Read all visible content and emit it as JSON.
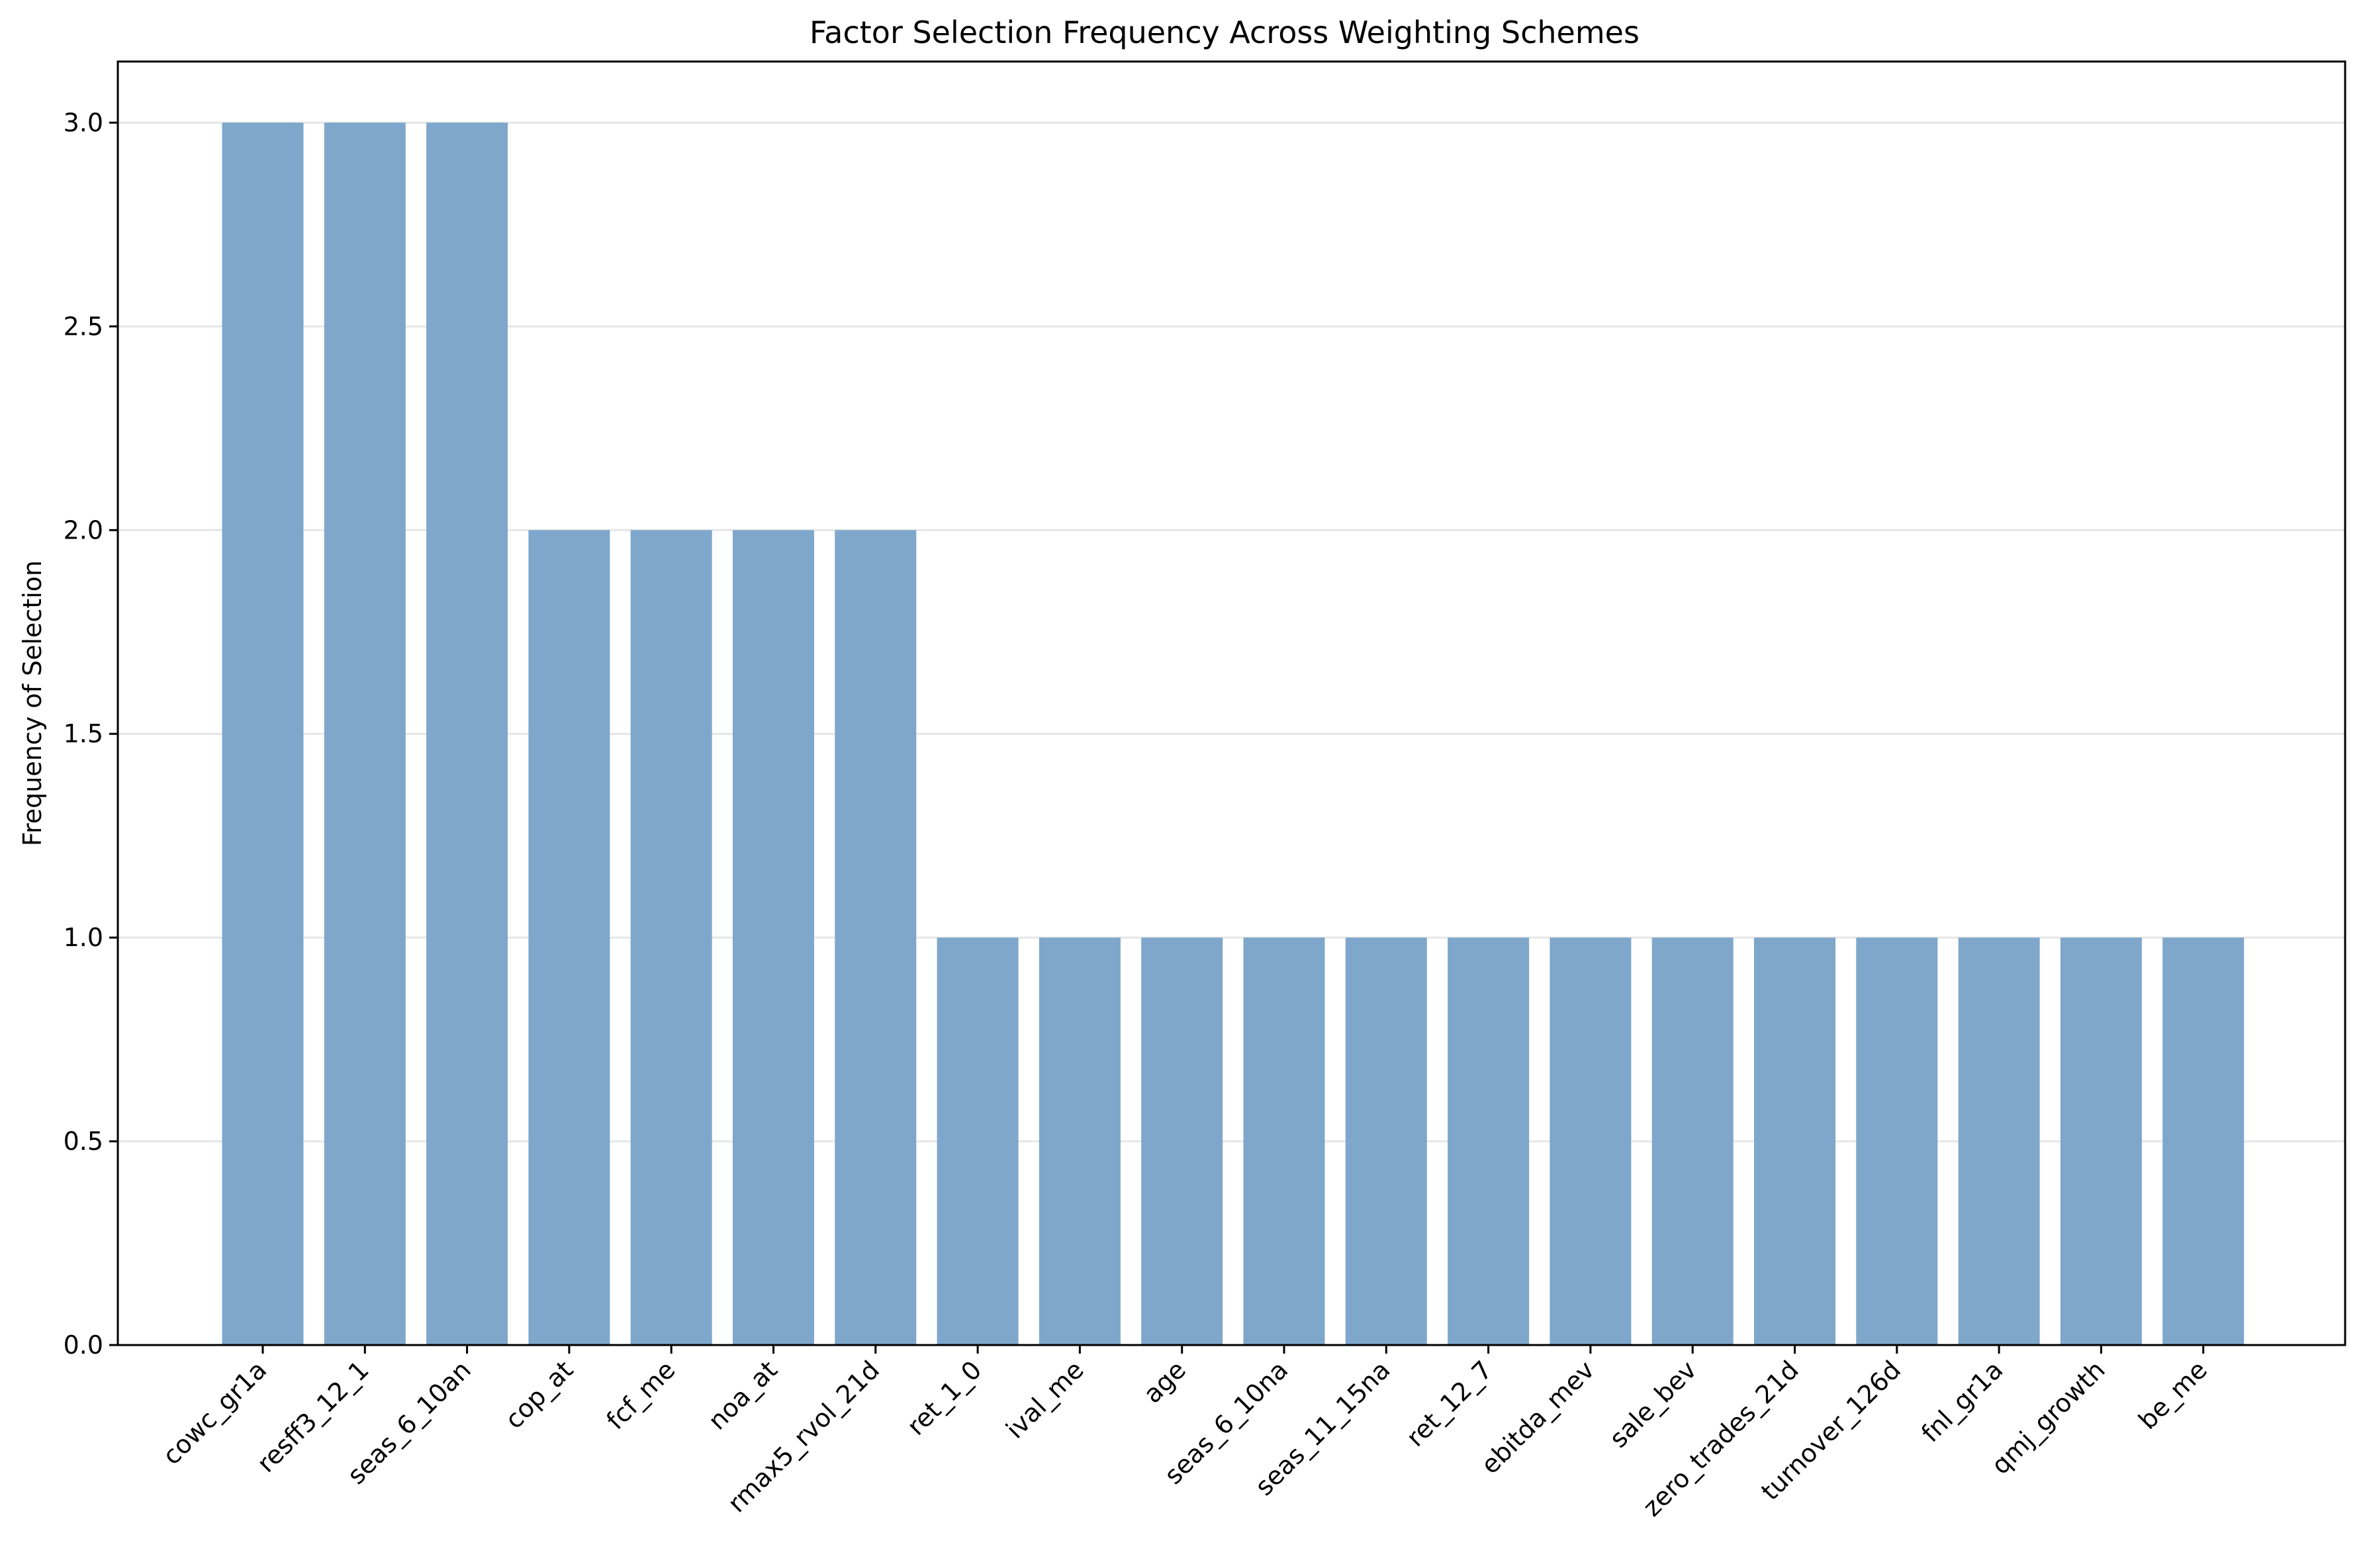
{
  "chart_data": {
    "type": "bar",
    "title": "Factor Selection Frequency Across Weighting Schemes",
    "xlabel": "",
    "ylabel": "Frequency of Selection",
    "categories": [
      "cowc_gr1a",
      "resff3_12_1",
      "seas_6_10an",
      "cop_at",
      "fcf_me",
      "noa_at",
      "rmax5_rvol_21d",
      "ret_1_0",
      "ival_me",
      "age",
      "seas_6_10na",
      "seas_11_15na",
      "ret_12_7",
      "ebitda_mev",
      "sale_bev",
      "zero_trades_21d",
      "turnover_126d",
      "fnl_gr1a",
      "qmj_growth",
      "be_me"
    ],
    "values": [
      3,
      3,
      3,
      2,
      2,
      2,
      2,
      1,
      1,
      1,
      1,
      1,
      1,
      1,
      1,
      1,
      1,
      1,
      1,
      1
    ],
    "ylim": [
      0,
      3.15
    ],
    "yticks": [
      "0.0",
      "0.5",
      "1.0",
      "1.5",
      "2.0",
      "2.5",
      "3.0"
    ],
    "grid": "y-axis only",
    "bar_color": "#7ea7cb"
  }
}
